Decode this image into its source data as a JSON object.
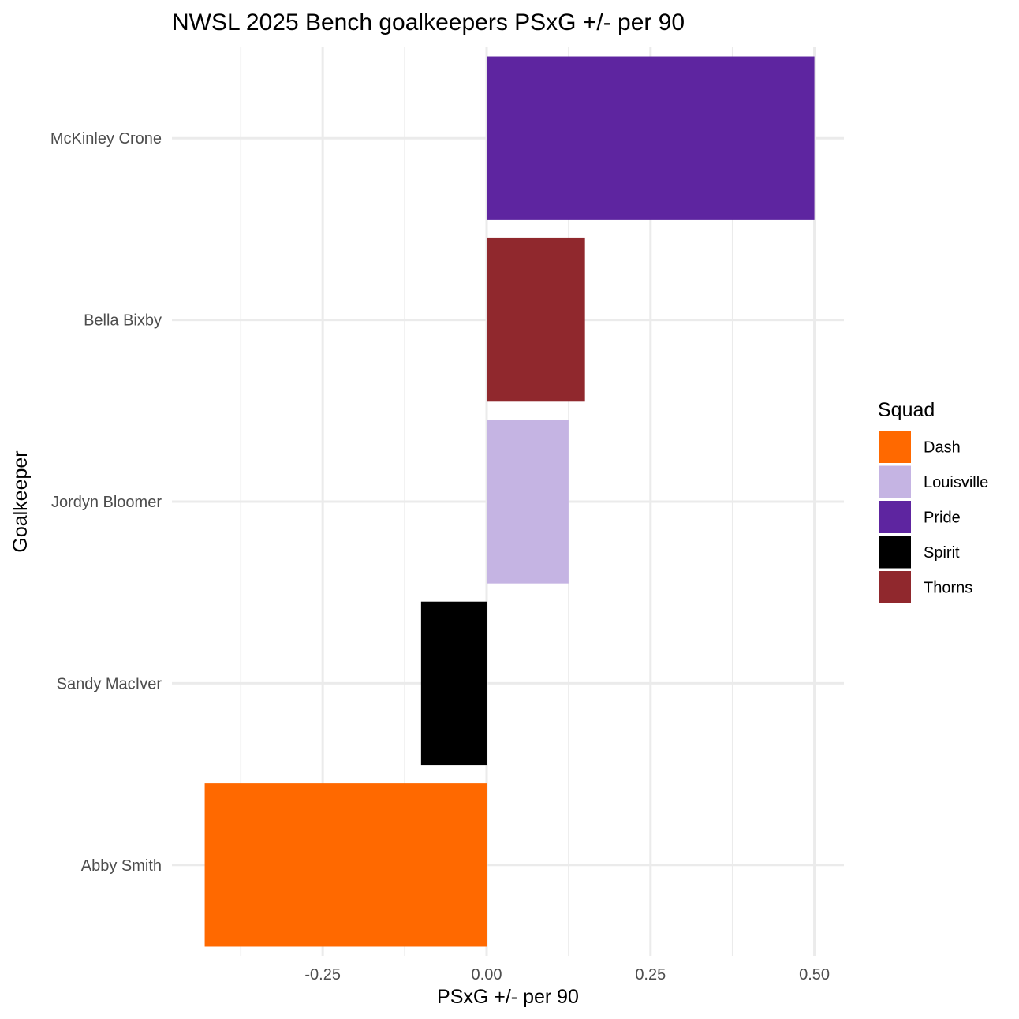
{
  "chart_data": {
    "type": "bar",
    "orientation": "horizontal",
    "title": "NWSL 2025 Bench goalkeepers PSxG +/- per 90",
    "xlabel": "PSxG +/- per 90",
    "ylabel": "Goalkeeper",
    "categories": [
      "Abby Smith",
      "Sandy MacIver",
      "Jordyn Bloomer",
      "Bella Bixby",
      "McKinley Crone"
    ],
    "values": [
      -0.43,
      -0.1,
      0.125,
      0.15,
      0.5
    ],
    "squad": [
      "Dash",
      "Spirit",
      "Louisville",
      "Thorns",
      "Pride"
    ],
    "xlim": [
      -0.48,
      0.545
    ],
    "x_ticks": [
      -0.25,
      0.0,
      0.25,
      0.5
    ],
    "x_tick_labels": [
      "-0.25",
      "0.00",
      "0.25",
      "0.50"
    ],
    "x_minor_ticks": [
      -0.375,
      -0.125,
      0.125,
      0.375
    ],
    "grid": true,
    "legend": {
      "title": "Squad",
      "position": "right",
      "entries": [
        {
          "name": "Dash",
          "color": "#ff6900"
        },
        {
          "name": "Louisville",
          "color": "#c5b4e3"
        },
        {
          "name": "Pride",
          "color": "#5e25a0"
        },
        {
          "name": "Spirit",
          "color": "#000000"
        },
        {
          "name": "Thorns",
          "color": "#90282d"
        }
      ]
    }
  }
}
